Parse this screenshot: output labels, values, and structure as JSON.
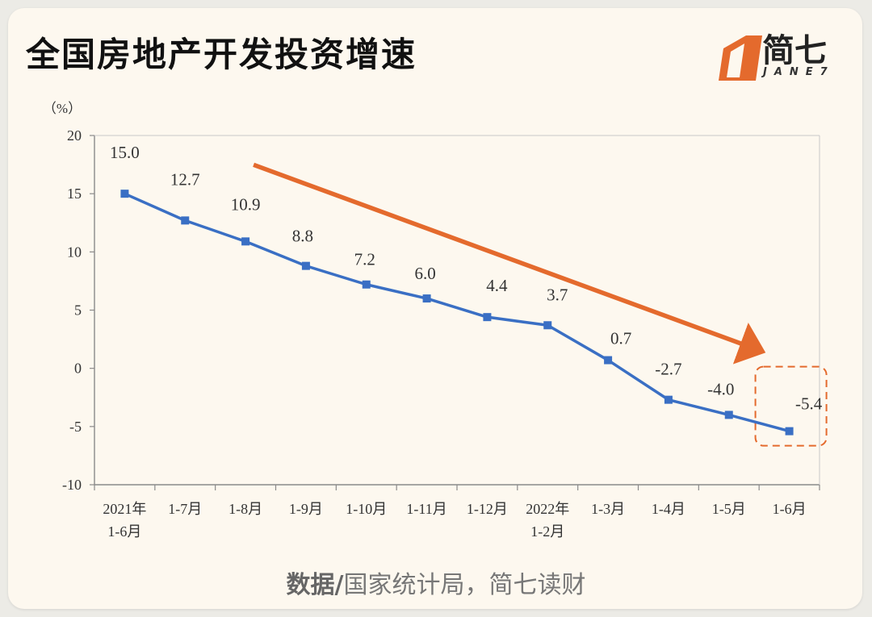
{
  "title": "全国房地产开发投资增速",
  "logo": {
    "main": "简七",
    "sub": "JANE7"
  },
  "source": {
    "prefix": "数据/",
    "text": "国家统计局，简七读财"
  },
  "colors": {
    "line": "#3a6fc4",
    "arrow": "#e46a2d",
    "axis": "#8a8a8a",
    "text": "#333333"
  },
  "chart_data": {
    "type": "line",
    "y_unit_label": "（%）",
    "ylim": [
      -10,
      20
    ],
    "yticks": [
      20,
      15,
      10,
      5,
      0,
      -5,
      -10
    ],
    "grid": false,
    "categories": [
      [
        "2021年",
        "1-6月"
      ],
      [
        "1-7月"
      ],
      [
        "1-8月"
      ],
      [
        "1-9月"
      ],
      [
        "1-10月"
      ],
      [
        "1-11月"
      ],
      [
        "1-12月"
      ],
      [
        "2022年",
        "1-2月"
      ],
      [
        "1-3月"
      ],
      [
        "1-4月"
      ],
      [
        "1-5月"
      ],
      [
        "1-6月"
      ]
    ],
    "series": [
      {
        "values": [
          15.0,
          12.7,
          10.9,
          8.8,
          7.2,
          6.0,
          4.4,
          3.7,
          0.7,
          -2.7,
          -4.0,
          -5.4
        ]
      }
    ],
    "data_labels": [
      "15.0",
      "12.7",
      "10.9",
      "8.8",
      "7.2",
      "6.0",
      "4.4",
      "3.7",
      "0.7",
      "-2.7",
      "-4.0",
      "-5.4"
    ],
    "annotations": [
      {
        "type": "trend-arrow",
        "from_category": 2,
        "to_category": 11,
        "direction": "down"
      },
      {
        "type": "highlight-box",
        "category": 11,
        "style": "dashed"
      }
    ]
  }
}
